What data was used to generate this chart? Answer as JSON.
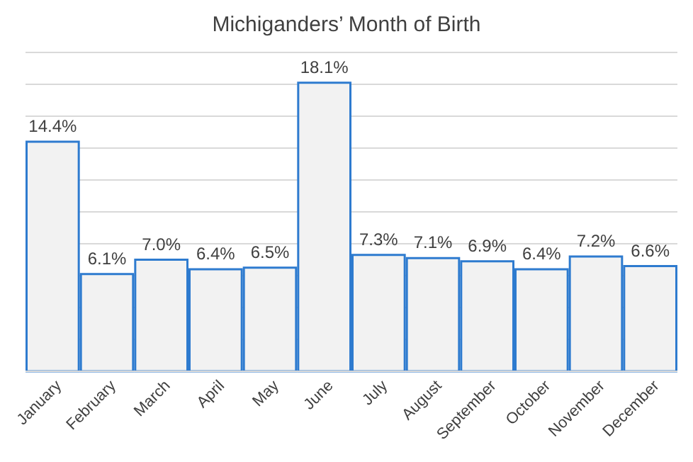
{
  "chart_data": {
    "type": "bar",
    "title": "Michiganders’ Month of Birth",
    "categories": [
      "January",
      "February",
      "March",
      "April",
      "May",
      "June",
      "July",
      "August",
      "September",
      "October",
      "November",
      "December"
    ],
    "values": [
      14.4,
      6.1,
      7.0,
      6.4,
      6.5,
      18.1,
      7.3,
      7.1,
      6.9,
      6.4,
      7.2,
      6.6
    ],
    "value_labels": [
      "14.4%",
      "6.1%",
      "7.0%",
      "6.4%",
      "6.5%",
      "18.1%",
      "7.3%",
      "7.1%",
      "6.9%",
      "6.4%",
      "7.2%",
      "6.6%"
    ],
    "color": "#f2f2f2",
    "ylim": [
      0,
      20
    ],
    "yticks": [
      {
        "value": 0,
        "label": null
      },
      {
        "value": 2,
        "label": null
      },
      {
        "value": 4,
        "label": null
      },
      {
        "value": 6,
        "label": null
      },
      {
        "value": 8,
        "label": null
      },
      {
        "value": 10,
        "label": null
      },
      {
        "value": 12,
        "label": null
      },
      {
        "value": 14,
        "label": null
      },
      {
        "value": 16,
        "label": null
      },
      {
        "value": 18,
        "label": null
      },
      {
        "value": 20,
        "label": null
      }
    ],
    "grid": "y",
    "tick_labels": "x"
  }
}
